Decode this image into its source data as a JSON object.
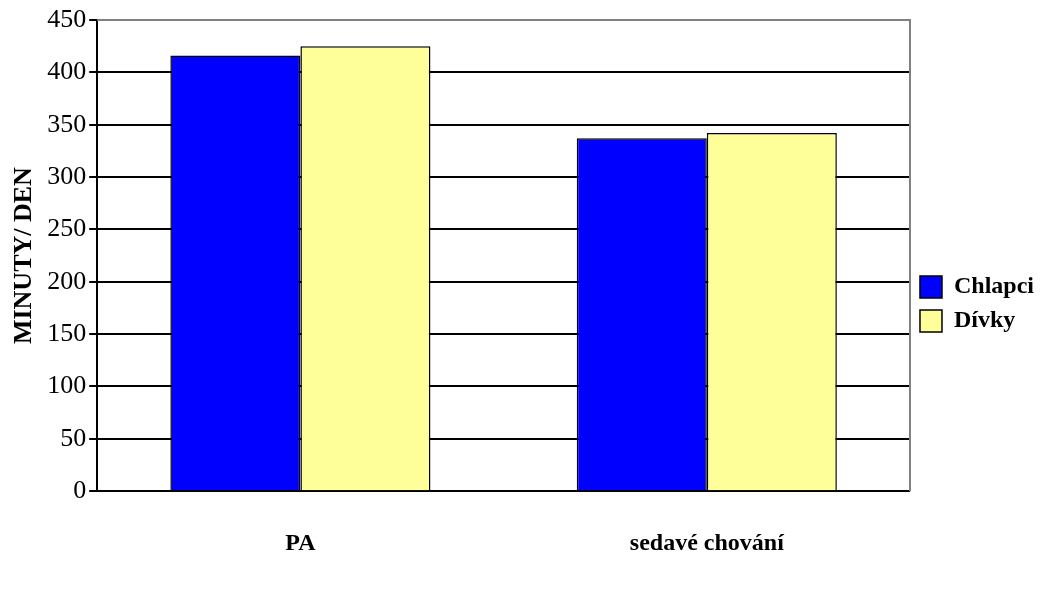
{
  "chart_data": {
    "type": "bar",
    "ylabel": "MINUTY/ DEN",
    "categories": [
      "PA",
      "sedavé chování"
    ],
    "series": [
      {
        "name": "Chlapci",
        "color": "#0000ff",
        "values": [
          416,
          337
        ]
      },
      {
        "name": "Dívky",
        "color": "#ffff99",
        "values": [
          425,
          342
        ]
      }
    ],
    "ylim": [
      0,
      450
    ],
    "yticks": [
      0,
      50,
      100,
      150,
      200,
      250,
      300,
      350,
      400,
      450
    ],
    "grid": "y",
    "legend": "right"
  }
}
